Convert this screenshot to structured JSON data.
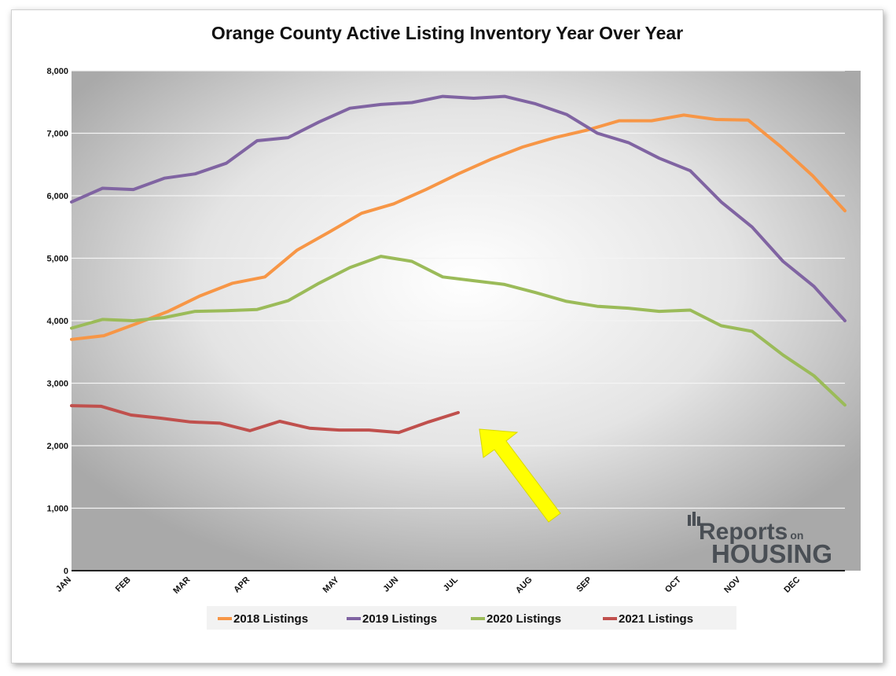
{
  "chart_data": {
    "type": "line",
    "title": "Orange County Active Listing Inventory Year Over Year",
    "xlabel": "",
    "ylabel": "",
    "ylim": [
      0,
      8000
    ],
    "yticks": [
      "0",
      "1,000",
      "2,000",
      "3,000",
      "4,000",
      "5,000",
      "6,000",
      "7,000",
      "8,000"
    ],
    "x_weeks": 52,
    "month_ticks": [
      {
        "label": "JAN",
        "week": 0
      },
      {
        "label": "FEB",
        "week": 4
      },
      {
        "label": "MAR",
        "week": 8
      },
      {
        "label": "APR",
        "week": 12
      },
      {
        "label": "MAY",
        "week": 18
      },
      {
        "label": "JUN",
        "week": 22
      },
      {
        "label": "JUL",
        "week": 26
      },
      {
        "label": "AUG",
        "week": 31
      },
      {
        "label": "SEP",
        "week": 35
      },
      {
        "label": "OCT",
        "week": 41
      },
      {
        "label": "NOV",
        "week": 45
      },
      {
        "label": "DEC",
        "week": 49
      }
    ],
    "legend_position": "bottom",
    "grid": true,
    "series": [
      {
        "name": "2018 Listings",
        "color": "#f79646",
        "values": [
          3700,
          3760,
          3950,
          4150,
          4400,
          4600,
          4700,
          5130,
          5420,
          5720,
          5870,
          6100,
          6350,
          6580,
          6780,
          6930,
          7050,
          7200,
          7200,
          7290,
          7220,
          7210,
          6790,
          6320,
          5760
        ]
      },
      {
        "name": "2019 Listings",
        "color": "#8064a2",
        "values": [
          5900,
          6120,
          6100,
          6280,
          6350,
          6520,
          6880,
          6930,
          7180,
          7400,
          7460,
          7490,
          7590,
          7560,
          7590,
          7470,
          7300,
          7000,
          6850,
          6600,
          6400,
          5900,
          5500,
          4950,
          4550,
          4000
        ]
      },
      {
        "name": "2020 Listings",
        "color": "#9bbb59",
        "values": [
          3880,
          4020,
          4000,
          4050,
          4150,
          4160,
          4180,
          4320,
          4600,
          4850,
          5030,
          4950,
          4700,
          4640,
          4580,
          4450,
          4310,
          4230,
          4200,
          4150,
          4170,
          3920,
          3830,
          3450,
          3120,
          2650
        ]
      },
      {
        "name": "2021 Listings",
        "color": "#c0504d",
        "values": [
          2640,
          2630,
          2490,
          2440,
          2380,
          2360,
          2240,
          2390,
          2280,
          2250,
          2250,
          2210,
          2380,
          2530
        ]
      }
    ]
  },
  "logo": {
    "line1": "Reports",
    "line1_small": "on",
    "line2": "HOUSING"
  }
}
